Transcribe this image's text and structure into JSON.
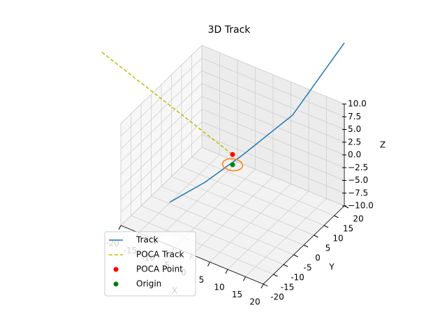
{
  "chart_data": {
    "type": "line3d",
    "title": "3D Track",
    "xlabel": "X",
    "ylabel": "Y",
    "zlabel": "Z",
    "xlim": [
      -20,
      20
    ],
    "ylim": [
      -20,
      20
    ],
    "zlim": [
      -10,
      10
    ],
    "xticks": [
      -20,
      -15,
      -10,
      -5,
      0,
      5,
      10,
      15,
      20
    ],
    "yticks": [
      -20,
      -15,
      -10,
      -5,
      0,
      5,
      10,
      15,
      20
    ],
    "zticks": [
      {
        "value": -10,
        "label": "−10.0"
      },
      {
        "value": -7.5,
        "label": "−7.5"
      },
      {
        "value": -5,
        "label": "−5.0"
      },
      {
        "value": -2.5,
        "label": "−2.5"
      },
      {
        "value": 0,
        "label": "0.0"
      },
      {
        "value": 2.5,
        "label": "2.5"
      },
      {
        "value": 5,
        "label": "5.0"
      },
      {
        "value": 7.5,
        "label": "7.5"
      },
      {
        "value": 10,
        "label": "10.0"
      }
    ],
    "grid": true,
    "legend": "lower left",
    "series": [
      {
        "name": "Track",
        "kind": "line",
        "color": "#1f77b4",
        "x": [
          -12,
          -6,
          0,
          10,
          15,
          20
        ],
        "y": [
          -10,
          -3,
          5,
          12,
          16,
          20
        ],
        "z": [
          -7,
          -4,
          0,
          8,
          15,
          22
        ]
      },
      {
        "name": "POCA Track",
        "kind": "dashed",
        "color": "#bfbf00",
        "x": [
          -31,
          0
        ],
        "y": [
          -10,
          0
        ],
        "z": [
          17,
          2
        ]
      },
      {
        "kind": "line",
        "color": "#ff7f0e",
        "x": [
          2.5,
          2.17,
          1.25,
          0,
          -1.25,
          -2.17,
          -2.5,
          -2.17,
          -1.25,
          0,
          1.25,
          2.17,
          2.5
        ],
        "y": [
          0,
          1.25,
          2.17,
          2.5,
          2.17,
          1.25,
          0,
          -1.25,
          -2.17,
          -2.5,
          -2.17,
          -1.25,
          0
        ],
        "z": [
          0,
          0,
          0,
          0,
          0,
          0,
          0,
          0,
          0,
          0,
          0,
          0,
          0
        ]
      },
      {
        "name": "POCA Point",
        "kind": "scatter",
        "color": "#ff0000",
        "x": [
          0
        ],
        "y": [
          0
        ],
        "z": [
          2
        ]
      },
      {
        "name": "Origin",
        "kind": "scatter",
        "color": "#008000",
        "x": [
          0
        ],
        "y": [
          0
        ],
        "z": [
          0
        ]
      }
    ]
  }
}
